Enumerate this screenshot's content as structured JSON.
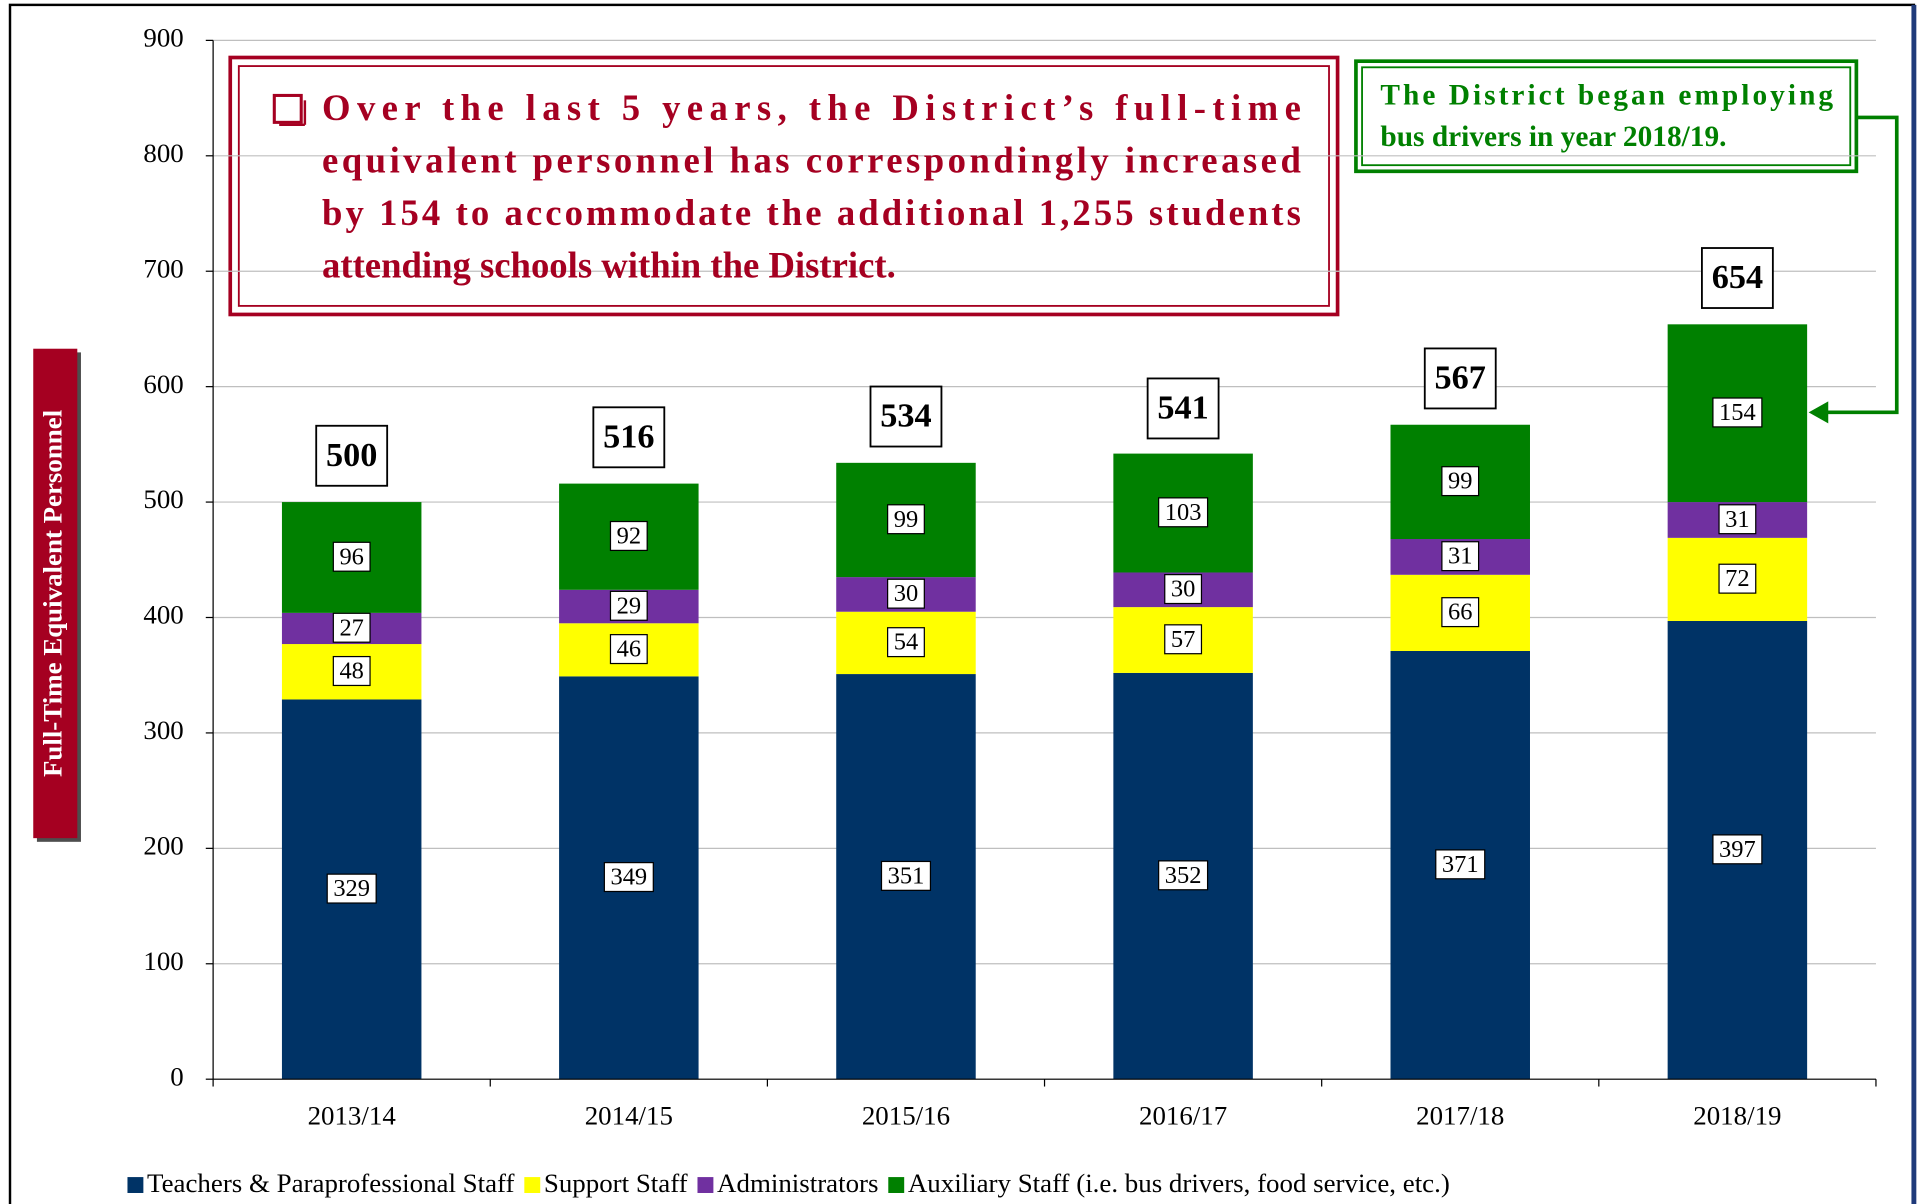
{
  "chart_data": {
    "type": "stacked_bar",
    "y_label": "Full-Time Equivalent Personnel",
    "categories": [
      "2013/14",
      "2014/15",
      "2015/16",
      "2016/17",
      "2017/18",
      "2018/19"
    ],
    "series": [
      {
        "name": "Teachers & Paraprofessional Staff",
        "color": "#003366",
        "values": [
          329,
          349,
          351,
          352,
          371,
          397
        ]
      },
      {
        "name": "Support Staff",
        "color": "#ffff00",
        "values": [
          48,
          46,
          54,
          57,
          66,
          72
        ]
      },
      {
        "name": "Administrators",
        "color": "#7030a0",
        "values": [
          27,
          29,
          30,
          30,
          31,
          31
        ]
      },
      {
        "name": "Auxiliary Staff (i.e. bus drivers, food service, etc.)",
        "color": "#008000",
        "values": [
          96,
          92,
          99,
          103,
          99,
          154
        ]
      }
    ],
    "totals": [
      500,
      516,
      534,
      541,
      567,
      654
    ],
    "ylim": [
      0,
      900
    ],
    "yticks": [
      0,
      100,
      200,
      300,
      400,
      500,
      600,
      700,
      800,
      900
    ],
    "grid": true,
    "annotations": [
      {
        "lines": [
          "Over the last 5 years, the District’s full-time",
          "equivalent personnel has correspondingly increased",
          "by 154 to accommodate the additional 1,255 students",
          "attending schools within the District."
        ]
      },
      {
        "lines": [
          "The District began employing",
          "bus drivers in year 2018/19."
        ]
      }
    ]
  }
}
